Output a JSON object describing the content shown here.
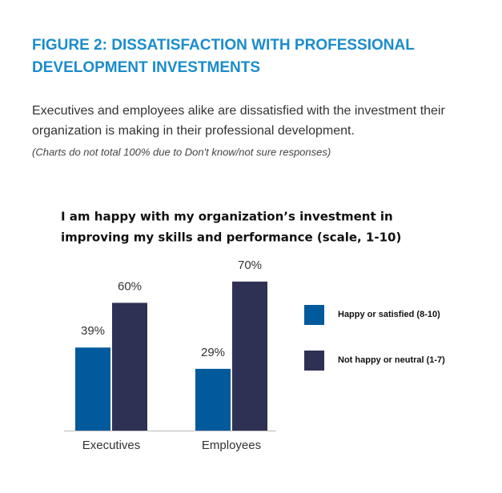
{
  "header": {
    "title": [
      "FIGURE 2: DISSATISFACTION WITH PROFESSIONAL",
      "DEVELOPMENT INVESTMENTS"
    ],
    "text": [
      "Executives and employees alike are dissatisfied with the investment their",
      "organization is making in their professional development."
    ],
    "note": "(Charts do not total 100% due to Don't know/not sure responses)"
  },
  "chart_data": {
    "type": "bar",
    "title": [
      "I am happy with my organization’s investment in",
      "improving my skills and performance (scale, 1-10)"
    ],
    "categories": [
      "Executives",
      "Employees"
    ],
    "series": [
      {
        "name": "Happy or satisfied (8-10)",
        "color": "#005a9c",
        "values": [
          39,
          29
        ],
        "value_labels": [
          "39%",
          "29%"
        ]
      },
      {
        "name": "Not happy or neutral (1-7)",
        "color": "#2e3054",
        "values": [
          60,
          70
        ],
        "value_labels": [
          "60%",
          "70%"
        ]
      }
    ]
  }
}
